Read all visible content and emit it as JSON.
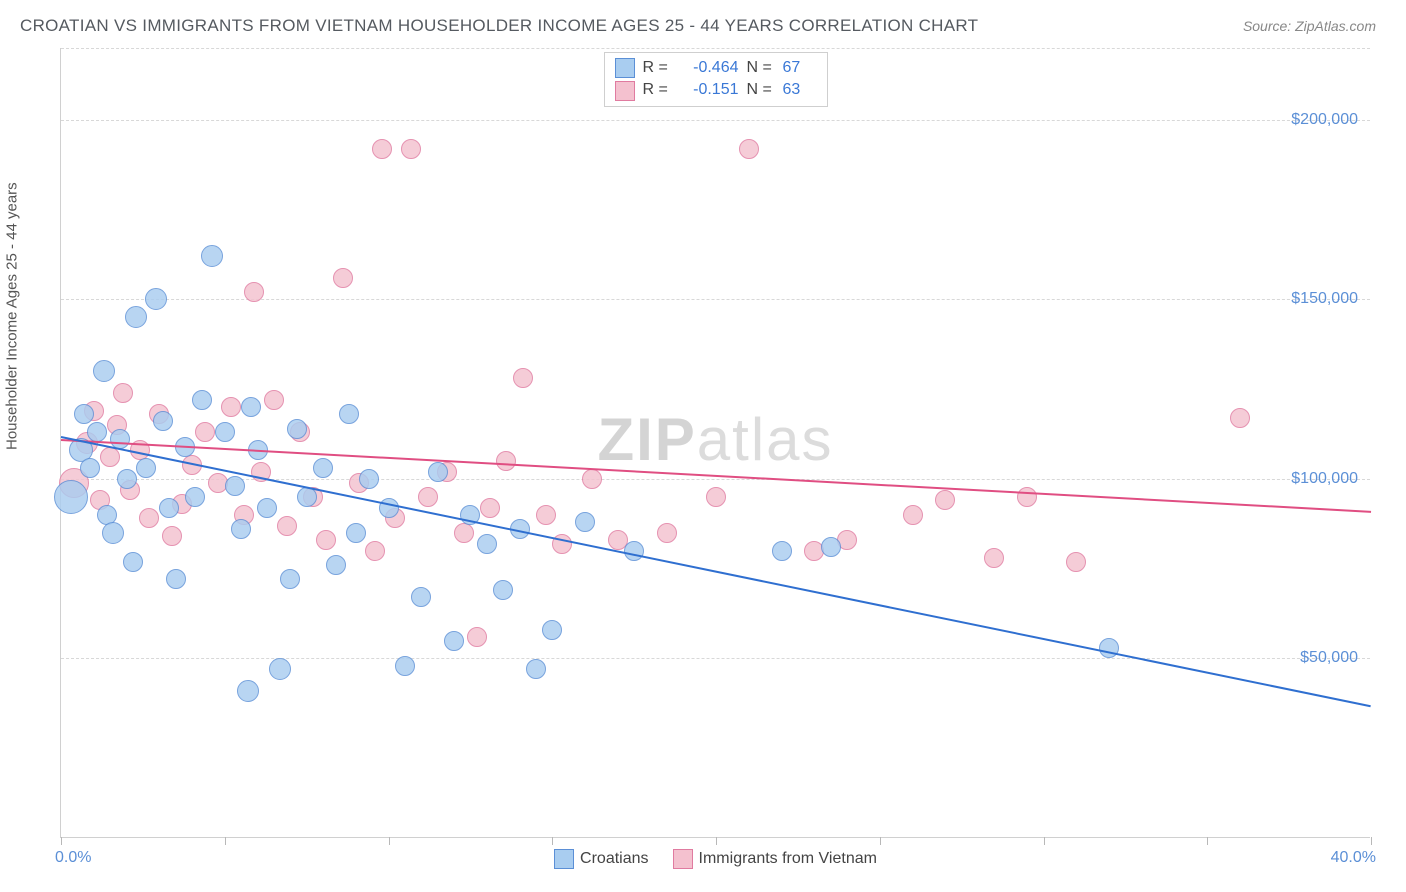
{
  "title": "CROATIAN VS IMMIGRANTS FROM VIETNAM HOUSEHOLDER INCOME AGES 25 - 44 YEARS CORRELATION CHART",
  "source_label": "Source: ZipAtlas.com",
  "watermark_prefix": "ZIP",
  "watermark_suffix": "atlas",
  "y_axis": {
    "label": "Householder Income Ages 25 - 44 years",
    "min": 0,
    "max": 220000,
    "ticks": [
      50000,
      100000,
      150000,
      200000
    ],
    "tick_labels": [
      "$50,000",
      "$100,000",
      "$150,000",
      "$200,000"
    ]
  },
  "x_axis": {
    "min": 0,
    "max": 40,
    "ticks": [
      0,
      5,
      10,
      15,
      20,
      25,
      30,
      35,
      40
    ],
    "start_label": "0.0%",
    "end_label": "40.0%"
  },
  "series": {
    "a": {
      "name": "Croatians",
      "fill": "#a9cdf0",
      "stroke": "#5b8fd6",
      "trend_color": "#2f6fd0",
      "R": "-0.464",
      "N": "67",
      "trend_start_y": 112000,
      "trend_end_y": 37000,
      "points": [
        {
          "x": 0.3,
          "y": 95000,
          "r": 16
        },
        {
          "x": 0.6,
          "y": 108000,
          "r": 11
        },
        {
          "x": 0.7,
          "y": 118000,
          "r": 9
        },
        {
          "x": 0.9,
          "y": 103000,
          "r": 9
        },
        {
          "x": 1.1,
          "y": 113000,
          "r": 9
        },
        {
          "x": 1.3,
          "y": 130000,
          "r": 10
        },
        {
          "x": 1.4,
          "y": 90000,
          "r": 9
        },
        {
          "x": 1.6,
          "y": 85000,
          "r": 10
        },
        {
          "x": 1.8,
          "y": 111000,
          "r": 9
        },
        {
          "x": 2.0,
          "y": 100000,
          "r": 9
        },
        {
          "x": 2.2,
          "y": 77000,
          "r": 9
        },
        {
          "x": 2.3,
          "y": 145000,
          "r": 10
        },
        {
          "x": 2.6,
          "y": 103000,
          "r": 9
        },
        {
          "x": 2.9,
          "y": 150000,
          "r": 10
        },
        {
          "x": 3.1,
          "y": 116000,
          "r": 9
        },
        {
          "x": 3.3,
          "y": 92000,
          "r": 9
        },
        {
          "x": 3.5,
          "y": 72000,
          "r": 9
        },
        {
          "x": 3.8,
          "y": 109000,
          "r": 9
        },
        {
          "x": 4.1,
          "y": 95000,
          "r": 9
        },
        {
          "x": 4.3,
          "y": 122000,
          "r": 9
        },
        {
          "x": 4.6,
          "y": 162000,
          "r": 10
        },
        {
          "x": 5.0,
          "y": 113000,
          "r": 9
        },
        {
          "x": 5.3,
          "y": 98000,
          "r": 9
        },
        {
          "x": 5.5,
          "y": 86000,
          "r": 9
        },
        {
          "x": 5.7,
          "y": 41000,
          "r": 10
        },
        {
          "x": 5.8,
          "y": 120000,
          "r": 9
        },
        {
          "x": 6.0,
          "y": 108000,
          "r": 9
        },
        {
          "x": 6.3,
          "y": 92000,
          "r": 9
        },
        {
          "x": 6.7,
          "y": 47000,
          "r": 10
        },
        {
          "x": 7.0,
          "y": 72000,
          "r": 9
        },
        {
          "x": 7.2,
          "y": 114000,
          "r": 9
        },
        {
          "x": 7.5,
          "y": 95000,
          "r": 9
        },
        {
          "x": 8.0,
          "y": 103000,
          "r": 9
        },
        {
          "x": 8.4,
          "y": 76000,
          "r": 9
        },
        {
          "x": 8.8,
          "y": 118000,
          "r": 9
        },
        {
          "x": 9.0,
          "y": 85000,
          "r": 9
        },
        {
          "x": 9.4,
          "y": 100000,
          "r": 9
        },
        {
          "x": 10.0,
          "y": 92000,
          "r": 9
        },
        {
          "x": 10.5,
          "y": 48000,
          "r": 9
        },
        {
          "x": 11.0,
          "y": 67000,
          "r": 9
        },
        {
          "x": 11.5,
          "y": 102000,
          "r": 9
        },
        {
          "x": 12.0,
          "y": 55000,
          "r": 9
        },
        {
          "x": 12.5,
          "y": 90000,
          "r": 9
        },
        {
          "x": 13.0,
          "y": 82000,
          "r": 9
        },
        {
          "x": 13.5,
          "y": 69000,
          "r": 9
        },
        {
          "x": 14.0,
          "y": 86000,
          "r": 9
        },
        {
          "x": 14.5,
          "y": 47000,
          "r": 9
        },
        {
          "x": 15.0,
          "y": 58000,
          "r": 9
        },
        {
          "x": 16.0,
          "y": 88000,
          "r": 9
        },
        {
          "x": 17.5,
          "y": 80000,
          "r": 9
        },
        {
          "x": 22.0,
          "y": 80000,
          "r": 9
        },
        {
          "x": 23.5,
          "y": 81000,
          "r": 9
        },
        {
          "x": 32.0,
          "y": 53000,
          "r": 9
        }
      ]
    },
    "b": {
      "name": "Immigrants from Vietnam",
      "fill": "#f4c1cf",
      "stroke": "#e07ba0",
      "trend_color": "#e04e82",
      "R": "-0.151",
      "N": "63",
      "trend_start_y": 111000,
      "trend_end_y": 91000,
      "points": [
        {
          "x": 0.4,
          "y": 99000,
          "r": 14
        },
        {
          "x": 0.8,
          "y": 110000,
          "r": 10
        },
        {
          "x": 1.0,
          "y": 119000,
          "r": 9
        },
        {
          "x": 1.2,
          "y": 94000,
          "r": 9
        },
        {
          "x": 1.5,
          "y": 106000,
          "r": 9
        },
        {
          "x": 1.7,
          "y": 115000,
          "r": 9
        },
        {
          "x": 1.9,
          "y": 124000,
          "r": 9
        },
        {
          "x": 2.1,
          "y": 97000,
          "r": 9
        },
        {
          "x": 2.4,
          "y": 108000,
          "r": 9
        },
        {
          "x": 2.7,
          "y": 89000,
          "r": 9
        },
        {
          "x": 3.0,
          "y": 118000,
          "r": 9
        },
        {
          "x": 3.4,
          "y": 84000,
          "r": 9
        },
        {
          "x": 3.7,
          "y": 93000,
          "r": 9
        },
        {
          "x": 4.0,
          "y": 104000,
          "r": 9
        },
        {
          "x": 4.4,
          "y": 113000,
          "r": 9
        },
        {
          "x": 4.8,
          "y": 99000,
          "r": 9
        },
        {
          "x": 5.2,
          "y": 120000,
          "r": 9
        },
        {
          "x": 5.6,
          "y": 90000,
          "r": 9
        },
        {
          "x": 5.9,
          "y": 152000,
          "r": 9
        },
        {
          "x": 6.1,
          "y": 102000,
          "r": 9
        },
        {
          "x": 6.5,
          "y": 122000,
          "r": 9
        },
        {
          "x": 6.9,
          "y": 87000,
          "r": 9
        },
        {
          "x": 7.3,
          "y": 113000,
          "r": 9
        },
        {
          "x": 7.7,
          "y": 95000,
          "r": 9
        },
        {
          "x": 8.1,
          "y": 83000,
          "r": 9
        },
        {
          "x": 8.6,
          "y": 156000,
          "r": 9
        },
        {
          "x": 9.1,
          "y": 99000,
          "r": 9
        },
        {
          "x": 9.6,
          "y": 80000,
          "r": 9
        },
        {
          "x": 9.8,
          "y": 192000,
          "r": 9
        },
        {
          "x": 10.2,
          "y": 89000,
          "r": 9
        },
        {
          "x": 10.7,
          "y": 192000,
          "r": 9
        },
        {
          "x": 11.2,
          "y": 95000,
          "r": 9
        },
        {
          "x": 11.8,
          "y": 102000,
          "r": 9
        },
        {
          "x": 12.3,
          "y": 85000,
          "r": 9
        },
        {
          "x": 12.7,
          "y": 56000,
          "r": 9
        },
        {
          "x": 13.1,
          "y": 92000,
          "r": 9
        },
        {
          "x": 13.6,
          "y": 105000,
          "r": 9
        },
        {
          "x": 14.1,
          "y": 128000,
          "r": 9
        },
        {
          "x": 14.8,
          "y": 90000,
          "r": 9
        },
        {
          "x": 15.3,
          "y": 82000,
          "r": 9
        },
        {
          "x": 16.2,
          "y": 100000,
          "r": 9
        },
        {
          "x": 17.0,
          "y": 83000,
          "r": 9
        },
        {
          "x": 18.5,
          "y": 85000,
          "r": 9
        },
        {
          "x": 20.0,
          "y": 95000,
          "r": 9
        },
        {
          "x": 21.0,
          "y": 192000,
          "r": 9
        },
        {
          "x": 23.0,
          "y": 80000,
          "r": 9
        },
        {
          "x": 24.0,
          "y": 83000,
          "r": 9
        },
        {
          "x": 26.0,
          "y": 90000,
          "r": 9
        },
        {
          "x": 27.0,
          "y": 94000,
          "r": 9
        },
        {
          "x": 28.5,
          "y": 78000,
          "r": 9
        },
        {
          "x": 29.5,
          "y": 95000,
          "r": 9
        },
        {
          "x": 31.0,
          "y": 77000,
          "r": 9
        },
        {
          "x": 36.0,
          "y": 117000,
          "r": 9
        }
      ]
    }
  },
  "colors": {
    "title": "#555a60",
    "axis_text": "#5b8fd6",
    "grid": "#d8d8d8",
    "border": "#d0d0d0"
  }
}
